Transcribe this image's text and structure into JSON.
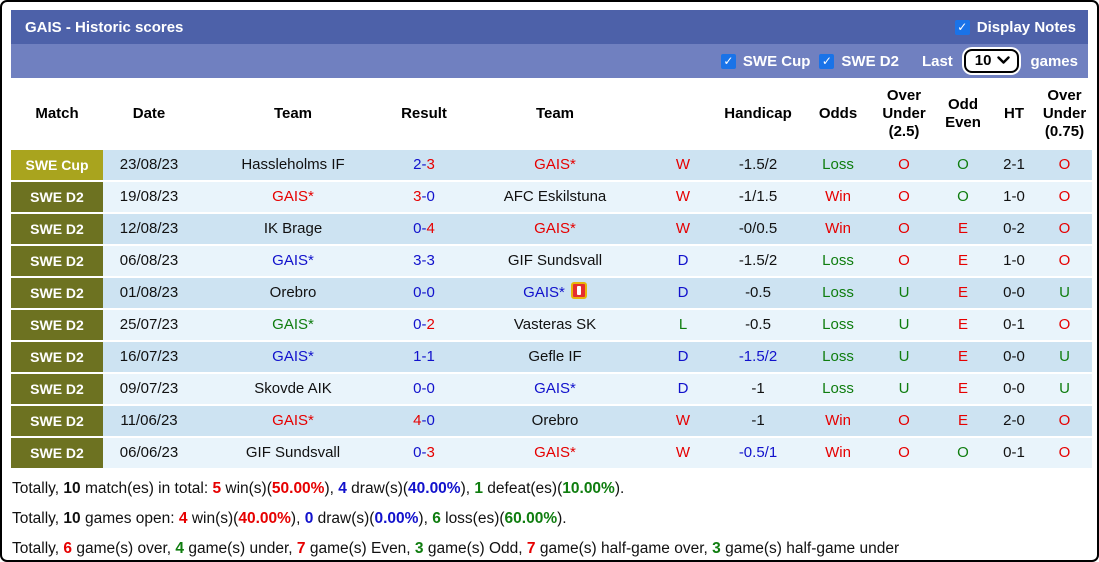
{
  "colors": {
    "k": "#111111",
    "r": "#e60000",
    "b": "#1111cc",
    "g": "#0f7d0f",
    "titlebar": "#4d61a9",
    "filterbar": "#7080c0",
    "row_odd": "#cde3f2",
    "row_even": "#e9f4fb",
    "cup": "#a9a41e",
    "d2": "#6d7221",
    "checkbox": "#1a73e8"
  },
  "title_bar": {
    "title": "GAIS - Historic scores",
    "display_notes": "Display Notes"
  },
  "filter_bar": {
    "swe_cup": "SWE Cup",
    "swe_d2": "SWE D2",
    "last": "Last",
    "selected_games": "10",
    "games": "games"
  },
  "table": {
    "columns": [
      "Match",
      "Date",
      "Team",
      "Result",
      "Team",
      "",
      "Handicap",
      "Odds",
      "Over\nUnder\n(2.5)",
      "Odd\nEven",
      "HT",
      "Over\nUnder\n(0.75)"
    ],
    "rows": [
      {
        "league": "SWE Cup",
        "league_type": "cup",
        "date": "23/08/23",
        "home": {
          "t": "Hassleholms IF",
          "c": "k"
        },
        "result": [
          {
            "t": "2",
            "c": "b"
          },
          {
            "t": "-",
            "c": "b"
          },
          {
            "t": "3",
            "c": "r"
          }
        ],
        "away": {
          "t": "GAIS*",
          "c": "r"
        },
        "wdl": {
          "t": "W",
          "c": "r"
        },
        "handicap": {
          "t": "-1.5/2",
          "c": "k"
        },
        "odds": {
          "t": "Loss",
          "c": "g"
        },
        "over_under_25": {
          "t": "O",
          "c": "r"
        },
        "odd_even": {
          "t": "O",
          "c": "g"
        },
        "ht": "2-1",
        "over_under_075": {
          "t": "O",
          "c": "r"
        }
      },
      {
        "league": "SWE D2",
        "league_type": "d2",
        "date": "19/08/23",
        "home": {
          "t": "GAIS*",
          "c": "r"
        },
        "result": [
          {
            "t": "3",
            "c": "r"
          },
          {
            "t": "-",
            "c": "b"
          },
          {
            "t": "0",
            "c": "b"
          }
        ],
        "away": {
          "t": "AFC Eskilstuna",
          "c": "k"
        },
        "wdl": {
          "t": "W",
          "c": "r"
        },
        "handicap": {
          "t": "-1/1.5",
          "c": "k"
        },
        "odds": {
          "t": "Win",
          "c": "r"
        },
        "over_under_25": {
          "t": "O",
          "c": "r"
        },
        "odd_even": {
          "t": "O",
          "c": "g"
        },
        "ht": "1-0",
        "over_under_075": {
          "t": "O",
          "c": "r"
        }
      },
      {
        "league": "SWE D2",
        "league_type": "d2",
        "date": "12/08/23",
        "home": {
          "t": "IK Brage",
          "c": "k"
        },
        "result": [
          {
            "t": "0",
            "c": "b"
          },
          {
            "t": "-",
            "c": "b"
          },
          {
            "t": "4",
            "c": "r"
          }
        ],
        "away": {
          "t": "GAIS*",
          "c": "r"
        },
        "wdl": {
          "t": "W",
          "c": "r"
        },
        "handicap": {
          "t": "-0/0.5",
          "c": "k"
        },
        "odds": {
          "t": "Win",
          "c": "r"
        },
        "over_under_25": {
          "t": "O",
          "c": "r"
        },
        "odd_even": {
          "t": "E",
          "c": "r"
        },
        "ht": "0-2",
        "over_under_075": {
          "t": "O",
          "c": "r"
        }
      },
      {
        "league": "SWE D2",
        "league_type": "d2",
        "date": "06/08/23",
        "home": {
          "t": "GAIS*",
          "c": "b"
        },
        "result": [
          {
            "t": "3",
            "c": "b"
          },
          {
            "t": "-",
            "c": "b"
          },
          {
            "t": "3",
            "c": "b"
          }
        ],
        "away": {
          "t": "GIF Sundsvall",
          "c": "k"
        },
        "wdl": {
          "t": "D",
          "c": "b"
        },
        "handicap": {
          "t": "-1.5/2",
          "c": "k"
        },
        "odds": {
          "t": "Loss",
          "c": "g"
        },
        "over_under_25": {
          "t": "O",
          "c": "r"
        },
        "odd_even": {
          "t": "E",
          "c": "r"
        },
        "ht": "1-0",
        "over_under_075": {
          "t": "O",
          "c": "r"
        }
      },
      {
        "league": "SWE D2",
        "league_type": "d2",
        "date": "01/08/23",
        "home": {
          "t": "Orebro",
          "c": "k"
        },
        "result": [
          {
            "t": "0",
            "c": "b"
          },
          {
            "t": "-",
            "c": "b"
          },
          {
            "t": "0",
            "c": "b"
          }
        ],
        "away": {
          "t": "GAIS*",
          "c": "b",
          "icon": "red-card"
        },
        "wdl": {
          "t": "D",
          "c": "b"
        },
        "handicap": {
          "t": "-0.5",
          "c": "k"
        },
        "odds": {
          "t": "Loss",
          "c": "g"
        },
        "over_under_25": {
          "t": "U",
          "c": "g"
        },
        "odd_even": {
          "t": "E",
          "c": "r"
        },
        "ht": "0-0",
        "over_under_075": {
          "t": "U",
          "c": "g"
        }
      },
      {
        "league": "SWE D2",
        "league_type": "d2",
        "date": "25/07/23",
        "home": {
          "t": "GAIS*",
          "c": "g"
        },
        "result": [
          {
            "t": "0",
            "c": "b"
          },
          {
            "t": "-",
            "c": "b"
          },
          {
            "t": "2",
            "c": "r"
          }
        ],
        "away": {
          "t": "Vasteras SK",
          "c": "k"
        },
        "wdl": {
          "t": "L",
          "c": "g"
        },
        "handicap": {
          "t": "-0.5",
          "c": "k"
        },
        "odds": {
          "t": "Loss",
          "c": "g"
        },
        "over_under_25": {
          "t": "U",
          "c": "g"
        },
        "odd_even": {
          "t": "E",
          "c": "r"
        },
        "ht": "0-1",
        "over_under_075": {
          "t": "O",
          "c": "r"
        }
      },
      {
        "league": "SWE D2",
        "league_type": "d2",
        "date": "16/07/23",
        "home": {
          "t": "GAIS*",
          "c": "b"
        },
        "result": [
          {
            "t": "1",
            "c": "b"
          },
          {
            "t": "-",
            "c": "b"
          },
          {
            "t": "1",
            "c": "b"
          }
        ],
        "away": {
          "t": "Gefle IF",
          "c": "k"
        },
        "wdl": {
          "t": "D",
          "c": "b"
        },
        "handicap": {
          "t": "-1.5/2",
          "c": "b"
        },
        "odds": {
          "t": "Loss",
          "c": "g"
        },
        "over_under_25": {
          "t": "U",
          "c": "g"
        },
        "odd_even": {
          "t": "E",
          "c": "r"
        },
        "ht": "0-0",
        "over_under_075": {
          "t": "U",
          "c": "g"
        }
      },
      {
        "league": "SWE D2",
        "league_type": "d2",
        "date": "09/07/23",
        "home": {
          "t": "Skovde AIK",
          "c": "k"
        },
        "result": [
          {
            "t": "0",
            "c": "b"
          },
          {
            "t": "-",
            "c": "b"
          },
          {
            "t": "0",
            "c": "b"
          }
        ],
        "away": {
          "t": "GAIS*",
          "c": "b"
        },
        "wdl": {
          "t": "D",
          "c": "b"
        },
        "handicap": {
          "t": "-1",
          "c": "k"
        },
        "odds": {
          "t": "Loss",
          "c": "g"
        },
        "over_under_25": {
          "t": "U",
          "c": "g"
        },
        "odd_even": {
          "t": "E",
          "c": "r"
        },
        "ht": "0-0",
        "over_under_075": {
          "t": "U",
          "c": "g"
        }
      },
      {
        "league": "SWE D2",
        "league_type": "d2",
        "date": "11/06/23",
        "home": {
          "t": "GAIS*",
          "c": "r"
        },
        "result": [
          {
            "t": "4",
            "c": "r"
          },
          {
            "t": "-",
            "c": "b"
          },
          {
            "t": "0",
            "c": "b"
          }
        ],
        "away": {
          "t": "Orebro",
          "c": "k"
        },
        "wdl": {
          "t": "W",
          "c": "r"
        },
        "handicap": {
          "t": "-1",
          "c": "k"
        },
        "odds": {
          "t": "Win",
          "c": "r"
        },
        "over_under_25": {
          "t": "O",
          "c": "r"
        },
        "odd_even": {
          "t": "E",
          "c": "r"
        },
        "ht": "2-0",
        "over_under_075": {
          "t": "O",
          "c": "r"
        }
      },
      {
        "league": "SWE D2",
        "league_type": "d2",
        "date": "06/06/23",
        "home": {
          "t": "GIF Sundsvall",
          "c": "k"
        },
        "result": [
          {
            "t": "0",
            "c": "b"
          },
          {
            "t": "-",
            "c": "b"
          },
          {
            "t": "3",
            "c": "r"
          }
        ],
        "away": {
          "t": "GAIS*",
          "c": "r"
        },
        "wdl": {
          "t": "W",
          "c": "r"
        },
        "handicap": {
          "t": "-0.5/1",
          "c": "b"
        },
        "odds": {
          "t": "Win",
          "c": "r"
        },
        "over_under_25": {
          "t": "O",
          "c": "r"
        },
        "odd_even": {
          "t": "O",
          "c": "g"
        },
        "ht": "0-1",
        "over_under_075": {
          "t": "O",
          "c": "r"
        }
      }
    ]
  },
  "footer": {
    "lines": [
      [
        {
          "t": "Totally, ",
          "c": "k"
        },
        {
          "t": "10",
          "c": "k",
          "b": true
        },
        {
          "t": " match(es) in total: ",
          "c": "k"
        },
        {
          "t": "5",
          "c": "r",
          "b": true
        },
        {
          "t": " win(s)(",
          "c": "k"
        },
        {
          "t": "50.00%",
          "c": "r",
          "b": true
        },
        {
          "t": "), ",
          "c": "k"
        },
        {
          "t": "4",
          "c": "b",
          "b": true
        },
        {
          "t": " draw(s)(",
          "c": "k"
        },
        {
          "t": "40.00%",
          "c": "b",
          "b": true
        },
        {
          "t": "), ",
          "c": "k"
        },
        {
          "t": "1",
          "c": "g",
          "b": true
        },
        {
          "t": " defeat(es)(",
          "c": "k"
        },
        {
          "t": "10.00%",
          "c": "g",
          "b": true
        },
        {
          "t": ").",
          "c": "k"
        }
      ],
      [
        {
          "t": "Totally, ",
          "c": "k"
        },
        {
          "t": "10",
          "c": "k",
          "b": true
        },
        {
          "t": " games open: ",
          "c": "k"
        },
        {
          "t": "4",
          "c": "r",
          "b": true
        },
        {
          "t": " win(s)(",
          "c": "k"
        },
        {
          "t": "40.00%",
          "c": "r",
          "b": true
        },
        {
          "t": "), ",
          "c": "k"
        },
        {
          "t": "0",
          "c": "b",
          "b": true
        },
        {
          "t": " draw(s)(",
          "c": "k"
        },
        {
          "t": "0.00%",
          "c": "b",
          "b": true
        },
        {
          "t": "), ",
          "c": "k"
        },
        {
          "t": "6",
          "c": "g",
          "b": true
        },
        {
          "t": " loss(es)(",
          "c": "k"
        },
        {
          "t": "60.00%",
          "c": "g",
          "b": true
        },
        {
          "t": ").",
          "c": "k"
        }
      ],
      [
        {
          "t": "Totally, ",
          "c": "k"
        },
        {
          "t": "6",
          "c": "r",
          "b": true
        },
        {
          "t": " game(s) over, ",
          "c": "k"
        },
        {
          "t": "4",
          "c": "g",
          "b": true
        },
        {
          "t": " game(s) under, ",
          "c": "k"
        },
        {
          "t": "7",
          "c": "r",
          "b": true
        },
        {
          "t": " game(s) Even, ",
          "c": "k"
        },
        {
          "t": "3",
          "c": "g",
          "b": true
        },
        {
          "t": " game(s) Odd, ",
          "c": "k"
        },
        {
          "t": "7",
          "c": "r",
          "b": true
        },
        {
          "t": " game(s) half-game over, ",
          "c": "k"
        },
        {
          "t": "3",
          "c": "g",
          "b": true
        },
        {
          "t": " game(s) half-game under",
          "c": "k"
        }
      ]
    ]
  }
}
